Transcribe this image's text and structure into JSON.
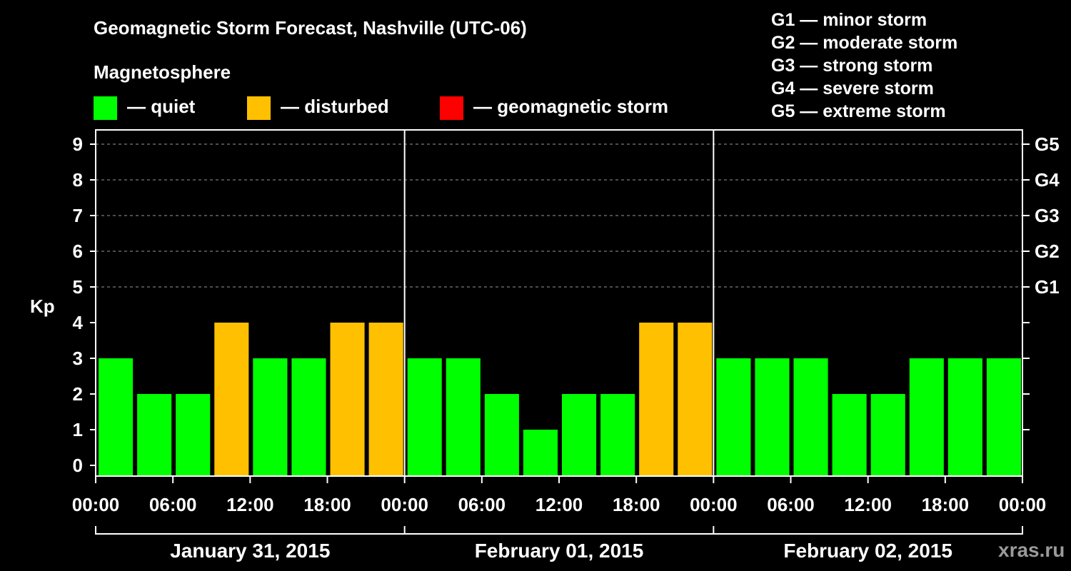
{
  "title": "Geomagnetic Storm Forecast, Nashville (UTC-06)",
  "legend": {
    "heading": "Magnetosphere",
    "items": [
      {
        "label": "— quiet",
        "color": "#00ff00"
      },
      {
        "label": "— disturbed",
        "color": "#ffc000"
      },
      {
        "label": "— geomagnetic storm",
        "color": "#ff0000"
      }
    ]
  },
  "storm_scale": [
    "G1 — minor storm",
    "G2 — moderate storm",
    "G3 — strong storm",
    "G4 — severe storm",
    "G5 — extreme storm"
  ],
  "watermark": "xras.ru",
  "chart_data": {
    "type": "bar",
    "title": "Geomagnetic Storm Forecast, Nashville (UTC-06)",
    "ylabel": "Kp",
    "ylim": [
      0,
      9
    ],
    "yticks": [
      0,
      1,
      2,
      3,
      4,
      5,
      6,
      7,
      8,
      9
    ],
    "right_ticks": [
      {
        "kp": 5,
        "label": "G1"
      },
      {
        "kp": 6,
        "label": "G2"
      },
      {
        "kp": 7,
        "label": "G3"
      },
      {
        "kp": 8,
        "label": "G4"
      },
      {
        "kp": 9,
        "label": "G5"
      }
    ],
    "grid": "horizontal dashed at Kp 5-9",
    "days": [
      "January 31, 2015",
      "February 01, 2015",
      "February 02, 2015"
    ],
    "xtick_labels": [
      "00:00",
      "06:00",
      "12:00",
      "18:00",
      "00:00",
      "06:00",
      "12:00",
      "18:00",
      "00:00",
      "06:00",
      "12:00",
      "18:00",
      "00:00",
      "06:00",
      "12:00",
      "18:00",
      "00:00"
    ],
    "bins_per_day": 8,
    "values": [
      3,
      2,
      2,
      4,
      3,
      3,
      4,
      4,
      3,
      3,
      2,
      1,
      2,
      2,
      4,
      4,
      3,
      3,
      3,
      2,
      2,
      3,
      3,
      3
    ],
    "status": [
      "quiet",
      "quiet",
      "quiet",
      "disturbed",
      "quiet",
      "quiet",
      "disturbed",
      "disturbed",
      "quiet",
      "quiet",
      "quiet",
      "quiet",
      "quiet",
      "quiet",
      "disturbed",
      "disturbed",
      "quiet",
      "quiet",
      "quiet",
      "quiet",
      "quiet",
      "quiet",
      "quiet",
      "quiet"
    ],
    "colors": {
      "quiet": "#00ff00",
      "disturbed": "#ffc000",
      "storm": "#ff0000"
    }
  }
}
